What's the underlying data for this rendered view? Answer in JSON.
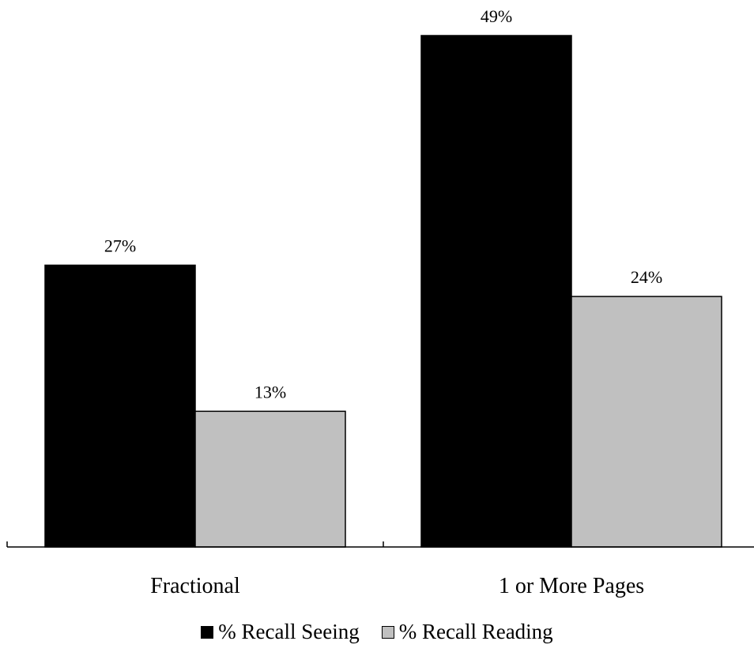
{
  "chart_data": {
    "type": "bar",
    "categories": [
      "Fractional",
      "1 or More Pages"
    ],
    "series": [
      {
        "name": "% Recall Seeing",
        "values": [
          27,
          49
        ],
        "color": "#000000",
        "labels": [
          "27%",
          "49%"
        ]
      },
      {
        "name": "% Recall Reading",
        "values": [
          13,
          24
        ],
        "color": "#c0c0c0",
        "labels": [
          "13%",
          "24%"
        ]
      }
    ],
    "title": "",
    "xlabel": "",
    "ylabel": "",
    "ylim": [
      0,
      50
    ],
    "grid": false,
    "legend": "bottom"
  }
}
